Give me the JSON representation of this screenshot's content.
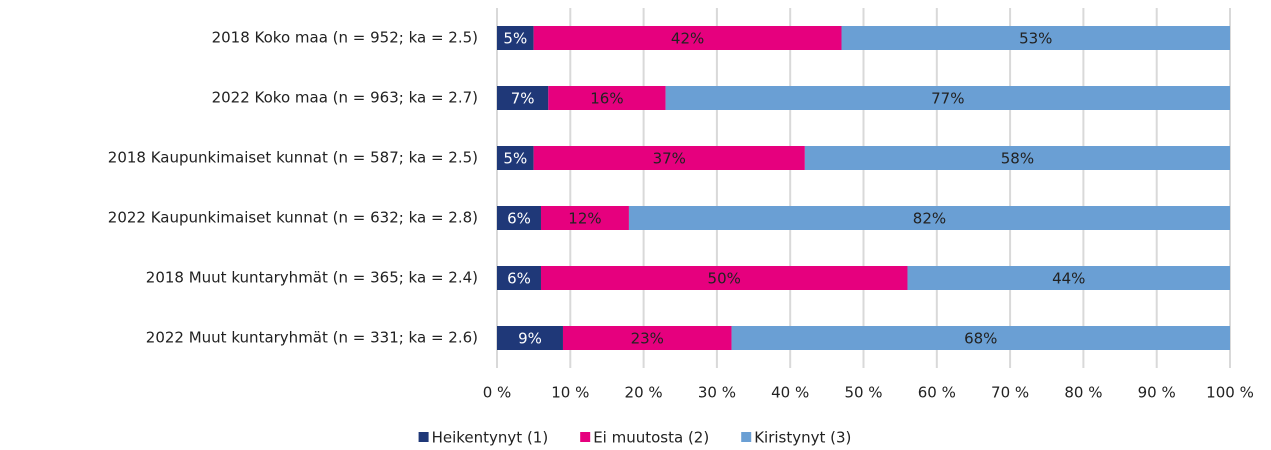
{
  "chart_data": {
    "type": "bar",
    "orientation": "horizontal",
    "stacked": true,
    "grid": true,
    "legend": "bottom",
    "categories": [
      "2018 Koko maa (n = 952; ka = 2.5)",
      "2022 Koko maa (n = 963; ka = 2.7)",
      "2018 Kaupunkimaiset kunnat (n = 587; ka = 2.5)",
      "2022 Kaupunkimaiset kunnat (n = 632; ka = 2.8)",
      "2018 Muut kuntaryhmät (n = 365; ka = 2.4)",
      "2022 Muut kuntaryhmät (n = 331; ka = 2.6)"
    ],
    "series": [
      {
        "name": "Heikentynyt (1)",
        "color": "#1f3878",
        "values": [
          5,
          7,
          5,
          6,
          6,
          9
        ],
        "value_labels": [
          "5%",
          "7%",
          "5%",
          "6%",
          "6%",
          "9%"
        ]
      },
      {
        "name": "Ei muutosta (2)",
        "color": "#e6007e",
        "values": [
          42,
          16,
          37,
          12,
          50,
          23
        ],
        "value_labels": [
          "42%",
          "16%",
          "37%",
          "12%",
          "50%",
          "23%"
        ]
      },
      {
        "name": "Kiristynyt (3)",
        "color": "#6a9fd4",
        "values": [
          53,
          77,
          58,
          82,
          44,
          68
        ],
        "value_labels": [
          "53%",
          "77%",
          "58%",
          "82%",
          "44%",
          "68%"
        ]
      }
    ],
    "xlim": [
      0,
      100
    ],
    "xticks": [
      {
        "value": 0,
        "label": "0 %"
      },
      {
        "value": 10,
        "label": "10 %"
      },
      {
        "value": 20,
        "label": "20 %"
      },
      {
        "value": 30,
        "label": "30 %"
      },
      {
        "value": 40,
        "label": "40 %"
      },
      {
        "value": 50,
        "label": "50 %"
      },
      {
        "value": 60,
        "label": "60 %"
      },
      {
        "value": 70,
        "label": "70 %"
      },
      {
        "value": 80,
        "label": "80 %"
      },
      {
        "value": 90,
        "label": "90 %"
      },
      {
        "value": 100,
        "label": "100 %"
      }
    ]
  }
}
